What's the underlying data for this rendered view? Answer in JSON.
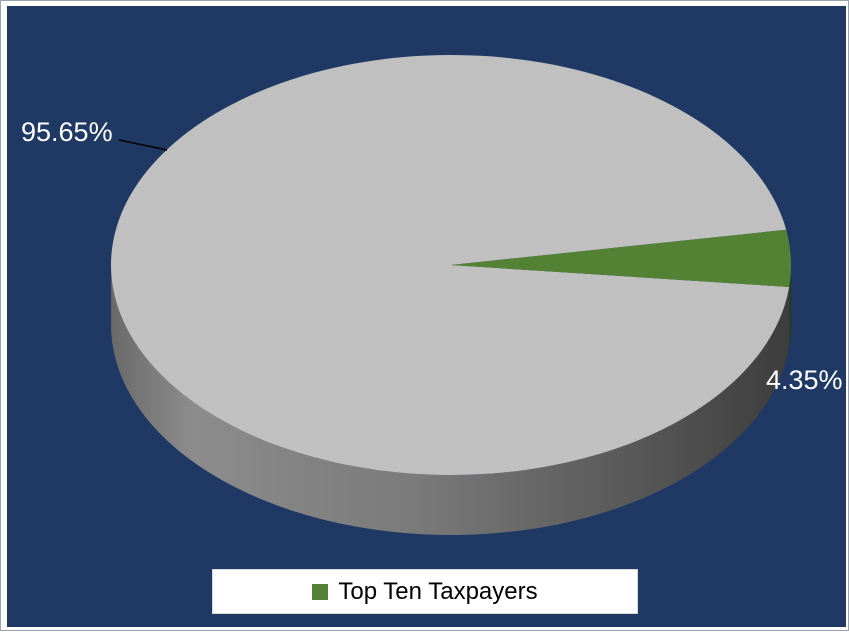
{
  "chart_data": {
    "type": "pie",
    "style": "3d",
    "title": "",
    "slices": [
      {
        "label": "",
        "value": 95.65,
        "display": "95.65%",
        "color": "#c0c0c0"
      },
      {
        "label": "Top Ten Taxpayers",
        "value": 4.35,
        "display": "4.35%",
        "color": "#548235"
      }
    ],
    "legend": {
      "position": "bottom",
      "entries": [
        {
          "label": "Top Ten Taxpayers",
          "color": "#548235"
        }
      ]
    },
    "background_color": "#1f3864"
  }
}
